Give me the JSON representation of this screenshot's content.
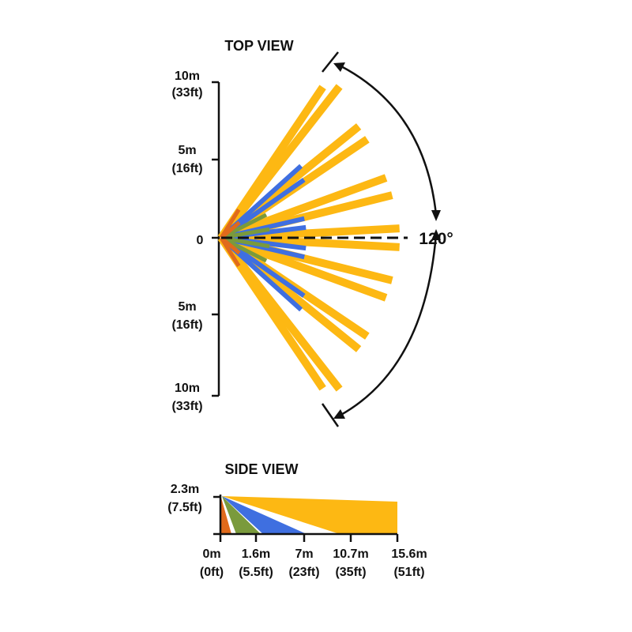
{
  "top_view": {
    "title": "TOP VIEW",
    "axis_labels": [
      {
        "m": "10m",
        "ft": "(33ft)"
      },
      {
        "m": "5m",
        "ft": "(16ft)"
      },
      {
        "m": "0",
        "ft": ""
      },
      {
        "m": "5m",
        "ft": "(16ft)"
      },
      {
        "m": "10m",
        "ft": "(33ft)"
      }
    ],
    "angle_label": "120°"
  },
  "side_view": {
    "title": "SIDE VIEW",
    "height_label": {
      "m": "2.3m",
      "ft": "(7.5ft)"
    },
    "distance_labels": [
      {
        "m": "0m",
        "ft": "(0ft)"
      },
      {
        "m": "1.6m",
        "ft": "(5.5ft)"
      },
      {
        "m": "7m",
        "ft": "(23ft)"
      },
      {
        "m": "10.7m",
        "ft": "(35ft)"
      },
      {
        "m": "15.6m",
        "ft": "(51ft)"
      }
    ]
  },
  "colors": {
    "far_zone": "#FDB813",
    "mid_zone": "#3F6FE0",
    "near_zone": "#7A9A3C",
    "closest_zone": "#E06A1B",
    "line": "#111111"
  }
}
